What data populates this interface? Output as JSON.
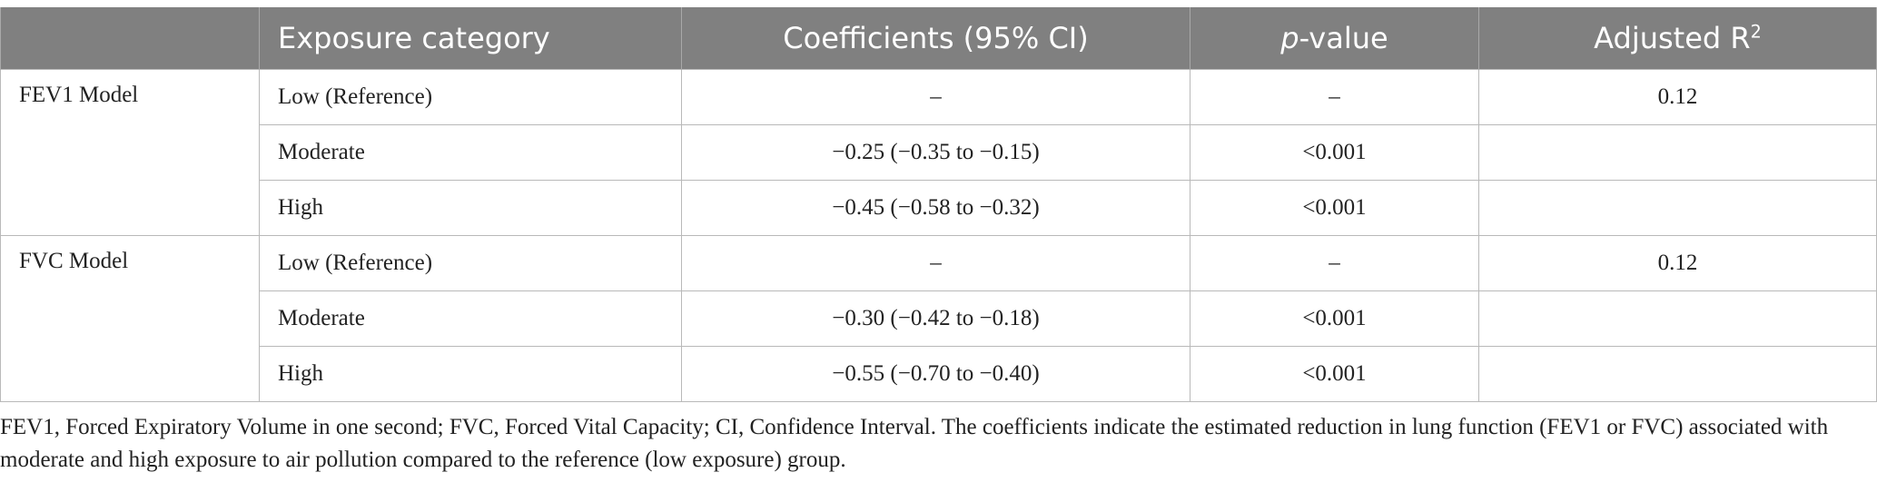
{
  "table": {
    "headers": {
      "group": "",
      "exposure": "Exposure category",
      "coefficients": "Coefficients (95% CI)",
      "pvalue_italic": "p",
      "pvalue_rest": "-value",
      "adjusted_r": "Adjusted R",
      "adjusted_r_sup": "2"
    },
    "groups": [
      {
        "label": "FEV1 Model",
        "rows": [
          {
            "exposure": "Low (Reference)",
            "coef": "–",
            "p": "–",
            "r2": "0.12"
          },
          {
            "exposure": "Moderate",
            "coef": "−0.25 (−0.35 to −0.15)",
            "p": "<0.001",
            "r2": ""
          },
          {
            "exposure": "High",
            "coef": "−0.45 (−0.58 to −0.32)",
            "p": "<0.001",
            "r2": ""
          }
        ]
      },
      {
        "label": "FVC Model",
        "rows": [
          {
            "exposure": "Low (Reference)",
            "coef": "–",
            "p": "–",
            "r2": "0.12"
          },
          {
            "exposure": "Moderate",
            "coef": "−0.30 (−0.42 to −0.18)",
            "p": "<0.001",
            "r2": ""
          },
          {
            "exposure": "High",
            "coef": "−0.55 (−0.70 to −0.40)",
            "p": "<0.001",
            "r2": ""
          }
        ]
      }
    ]
  },
  "footnote": "FEV1, Forced Expiratory Volume in one second; FVC, Forced Vital Capacity; CI, Confidence Interval. The coefficients indicate the estimated reduction in lung function (FEV1 or FVC) associated with moderate and high exposure to air pollution compared to the reference (low exposure) group.",
  "colors": {
    "header_bg": "#808080",
    "header_text": "#ffffff",
    "border": "#b9b9b9"
  }
}
